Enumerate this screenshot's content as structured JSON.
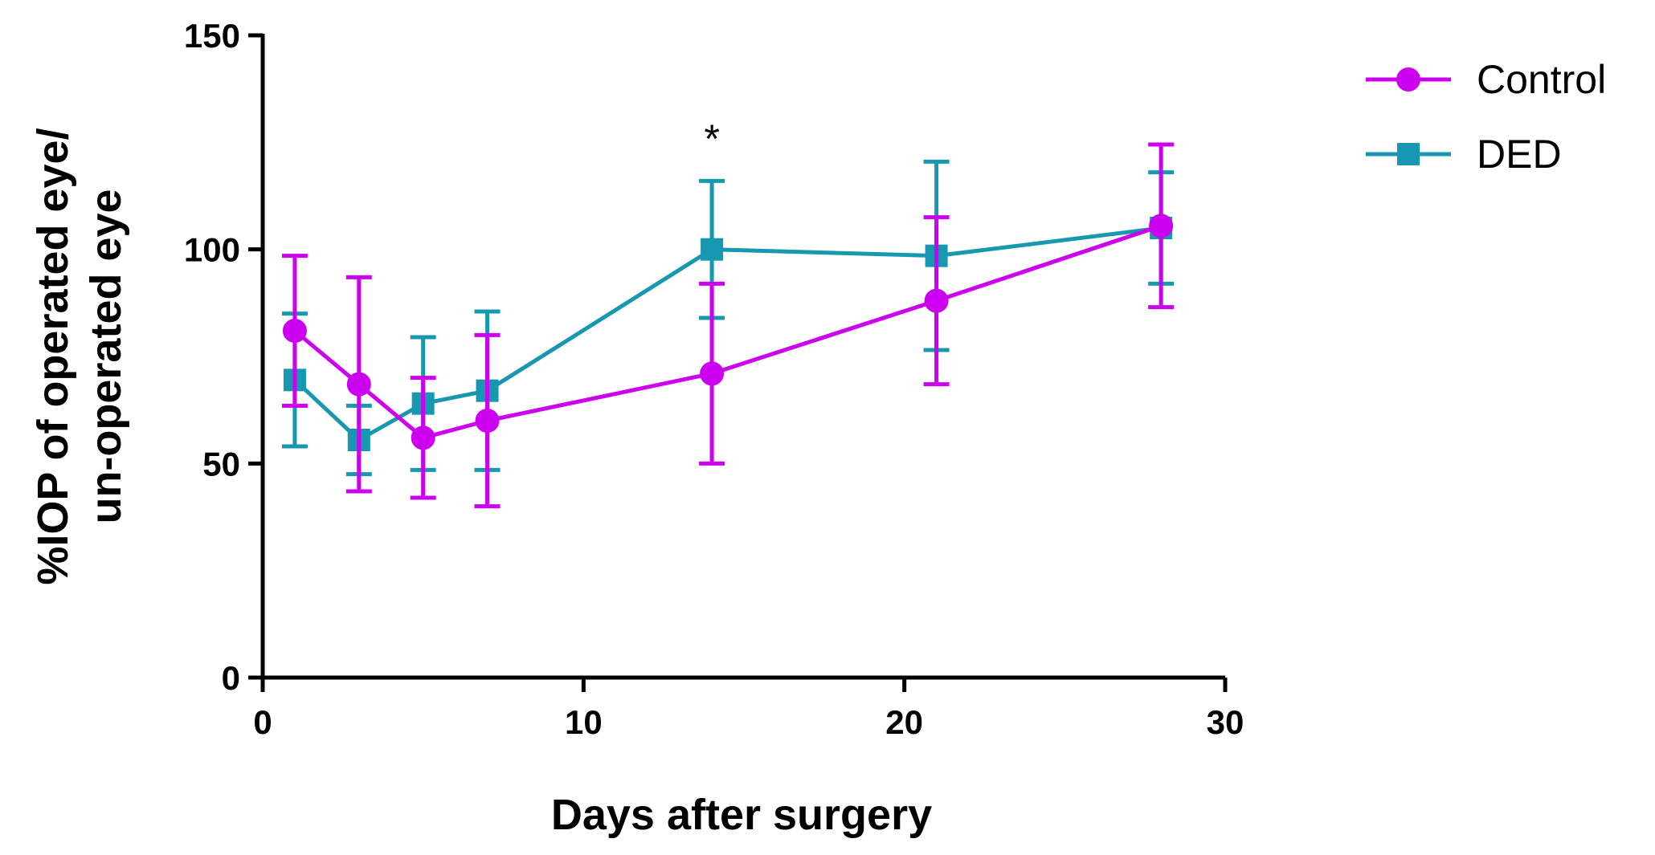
{
  "chart_data": {
    "type": "line",
    "title": "",
    "xlabel": "Days after surgery",
    "ylabel": [
      "%IOP of operated eye/",
      "un-operated eye"
    ],
    "xlim": [
      0,
      30
    ],
    "ylim": [
      0,
      150
    ],
    "xticks": [
      0,
      10,
      20,
      30
    ],
    "yticks": [
      0,
      50,
      100,
      150
    ],
    "grid": false,
    "legend_position": "top-right",
    "x": [
      1,
      3,
      5,
      7,
      14,
      21,
      28
    ],
    "series": [
      {
        "name": "DED",
        "color": "#1798B0",
        "marker": "square",
        "values": [
          69.5,
          55.5,
          64,
          67,
          100,
          98.5,
          105
        ],
        "error": [
          15.5,
          8,
          15.5,
          18.5,
          16,
          22,
          13
        ]
      },
      {
        "name": "Control",
        "color": "#CC00EE",
        "marker": "circle",
        "values": [
          81,
          68.5,
          56,
          60,
          71,
          88,
          105.5
        ],
        "error": [
          17.5,
          25,
          14,
          20,
          21,
          19.5,
          19
        ]
      }
    ],
    "legend_order": [
      "Control",
      "DED"
    ],
    "annotations": [
      {
        "x": 14,
        "y": 126,
        "text": "*"
      }
    ]
  }
}
